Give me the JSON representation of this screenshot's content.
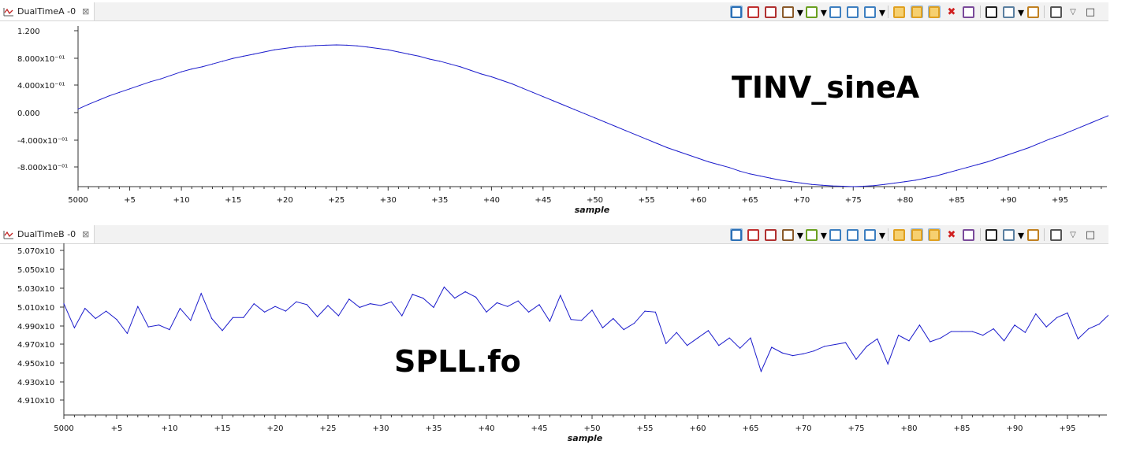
{
  "views": [
    {
      "tab_label": "DualTimeA -0",
      "close": "⊠"
    },
    {
      "tab_label": "DualTimeB -0",
      "close": "⊠"
    }
  ],
  "toolbar_icons": [
    "show-grid-icon",
    "measure-icon",
    "data-view-icon",
    "marker-icon",
    "add-marker-icon",
    "zoom-in-icon",
    "zoom-out-icon",
    "zoom-fit-icon",
    "refresh-icon",
    "auto-refresh-icon",
    "continuous-refresh-icon",
    "delete-icon",
    "export-icon",
    "binoculars-icon",
    "properties-icon",
    "snapshot-icon",
    "view-menu-icon",
    "collapse-icon",
    "maximize-icon"
  ],
  "chart_data": [
    {
      "type": "line",
      "annotation": "TINV_sineA",
      "xlabel": "sample",
      "ylabel": "",
      "x_ticks": [
        "5000",
        "+5",
        "+10",
        "+15",
        "+20",
        "+25",
        "+30",
        "+35",
        "+40",
        "+45",
        "+50",
        "+55",
        "+60",
        "+65",
        "+70",
        "+75",
        "+80",
        "+85",
        "+90",
        "+95"
      ],
      "y_ticks": [
        "1.200",
        "8.000x10⁻⁰¹",
        "4.000x10⁻⁰¹",
        "0.000",
        "-4.000x10⁻⁰¹",
        "-8.000x10⁻⁰¹"
      ],
      "ylim": [
        -1.0,
        1.2
      ],
      "series": [
        {
          "color": "#1c1ccc",
          "x_start": 0,
          "x_step": 1,
          "values": [
            0.095,
            0.16,
            0.22,
            0.28,
            0.33,
            0.38,
            0.43,
            0.48,
            0.52,
            0.57,
            0.62,
            0.66,
            0.69,
            0.73,
            0.77,
            0.81,
            0.84,
            0.87,
            0.9,
            0.93,
            0.95,
            0.97,
            0.98,
            0.99,
            0.995,
            1.0,
            0.995,
            0.985,
            0.97,
            0.95,
            0.93,
            0.9,
            0.87,
            0.84,
            0.8,
            0.77,
            0.73,
            0.69,
            0.64,
            0.59,
            0.55,
            0.5,
            0.45,
            0.39,
            0.33,
            0.27,
            0.21,
            0.15,
            0.09,
            0.03,
            -0.03,
            -0.09,
            -0.15,
            -0.21,
            -0.27,
            -0.33,
            -0.39,
            -0.45,
            -0.5,
            -0.55,
            -0.6,
            -0.65,
            -0.69,
            -0.73,
            -0.78,
            -0.82,
            -0.85,
            -0.88,
            -0.91,
            -0.93,
            -0.95,
            -0.97,
            -0.98,
            -0.99,
            -0.995,
            -1.0,
            -0.995,
            -0.985,
            -0.97,
            -0.95,
            -0.93,
            -0.91,
            -0.88,
            -0.85,
            -0.81,
            -0.77,
            -0.73,
            -0.69,
            -0.65,
            -0.6,
            -0.55,
            -0.5,
            -0.45,
            -0.39,
            -0.33,
            -0.28,
            -0.22,
            -0.16,
            -0.1,
            -0.04,
            0.02
          ]
        }
      ]
    },
    {
      "type": "line",
      "annotation": "SPLL.fo",
      "xlabel": "sample",
      "ylabel": "",
      "x_ticks": [
        "5000",
        "+5",
        "+10",
        "+15",
        "+20",
        "+25",
        "+30",
        "+35",
        "+40",
        "+45",
        "+50",
        "+55",
        "+60",
        "+65",
        "+70",
        "+75",
        "+80",
        "+85",
        "+90",
        "+95"
      ],
      "y_ticks": [
        "5.070x10",
        "5.050x10",
        "5.030x10",
        "5.010x10",
        "4.990x10",
        "4.970x10",
        "4.950x10",
        "4.930x10",
        "4.910x10"
      ],
      "ylim": [
        4.9,
        5.08
      ],
      "series": [
        {
          "color": "#1c1ccc",
          "x_start": 0,
          "x_step": 1,
          "values": [
            5.02,
            4.994,
            5.015,
            5.004,
            5.012,
            5.003,
            4.988,
            5.017,
            4.995,
            4.997,
            4.992,
            5.015,
            5.002,
            5.031,
            5.004,
            4.991,
            5.005,
            5.005,
            5.02,
            5.011,
            5.017,
            5.012,
            5.022,
            5.019,
            5.006,
            5.018,
            5.007,
            5.025,
            5.016,
            5.02,
            5.018,
            5.022,
            5.007,
            5.03,
            5.026,
            5.016,
            5.038,
            5.026,
            5.033,
            5.027,
            5.011,
            5.021,
            5.017,
            5.023,
            5.011,
            5.019,
            5.001,
            5.029,
            5.003,
            5.002,
            5.013,
            4.994,
            5.004,
            4.992,
            4.999,
            5.012,
            5.011,
            4.977,
            4.989,
            4.975,
            4.983,
            4.991,
            4.975,
            4.983,
            4.972,
            4.983,
            4.947,
            4.973,
            4.967,
            4.964,
            4.966,
            4.969,
            4.974,
            4.976,
            4.978,
            4.96,
            4.974,
            4.982,
            4.955,
            4.986,
            4.98,
            4.997,
            4.979,
            4.983,
            4.99,
            4.99,
            4.99,
            4.986,
            4.993,
            4.98,
            4.997,
            4.989,
            5.009,
            4.995,
            5.005,
            5.01,
            4.982,
            4.993,
            4.998,
            5.009
          ]
        }
      ]
    }
  ]
}
